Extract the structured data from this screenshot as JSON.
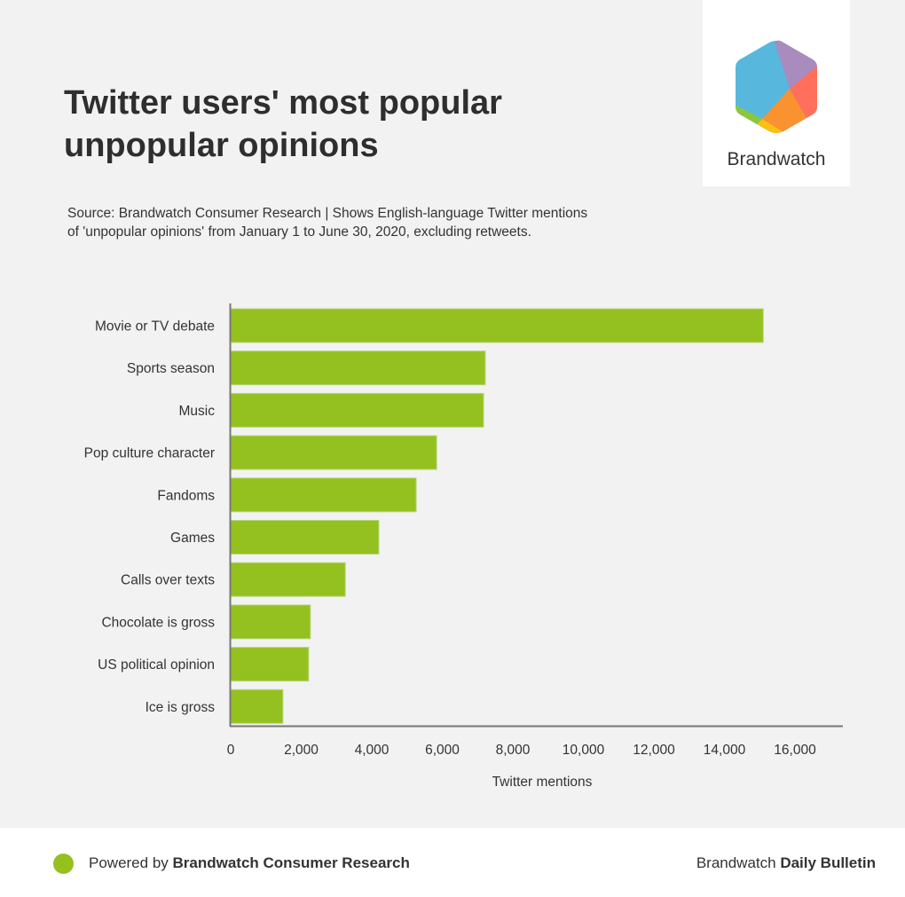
{
  "header": {
    "title": "Twitter users' most popular unpopular opinions",
    "source": "Source: Brandwatch Consumer Research | Shows English-language Twitter mentions of 'unpopular opinions' from January 1 to June 30, 2020, excluding retweets.",
    "logo_text": "Brandwatch"
  },
  "chart_data": {
    "type": "bar",
    "orientation": "horizontal",
    "title": "Twitter users' most popular unpopular opinions",
    "categories": [
      "Movie or TV debate",
      "Sports season",
      "Music",
      "Pop culture character",
      "Fandoms",
      "Games",
      "Calls over texts",
      "Chocolate is gross",
      "US political opinion",
      "Ice is gross"
    ],
    "values": [
      15100,
      7220,
      7170,
      5840,
      5260,
      4200,
      3250,
      2260,
      2210,
      1480
    ],
    "xlabel": "Twitter mentions",
    "ylabel": "",
    "xlim": [
      0,
      17300
    ],
    "xticks": [
      0,
      2000,
      4000,
      6000,
      8000,
      10000,
      12000,
      14000,
      16000
    ],
    "xtick_labels": [
      "0",
      "2,000",
      "4,000",
      "6,000",
      "8,000",
      "10,000",
      "12,000",
      "14,000",
      "16,000"
    ],
    "grid": false,
    "bar_color": "#94c120"
  },
  "footer": {
    "powered_prefix": "Powered by ",
    "powered_brand": "Brandwatch Consumer Research",
    "bulletin_prefix": "Brandwatch ",
    "bulletin_bold": "Daily Bulletin"
  }
}
